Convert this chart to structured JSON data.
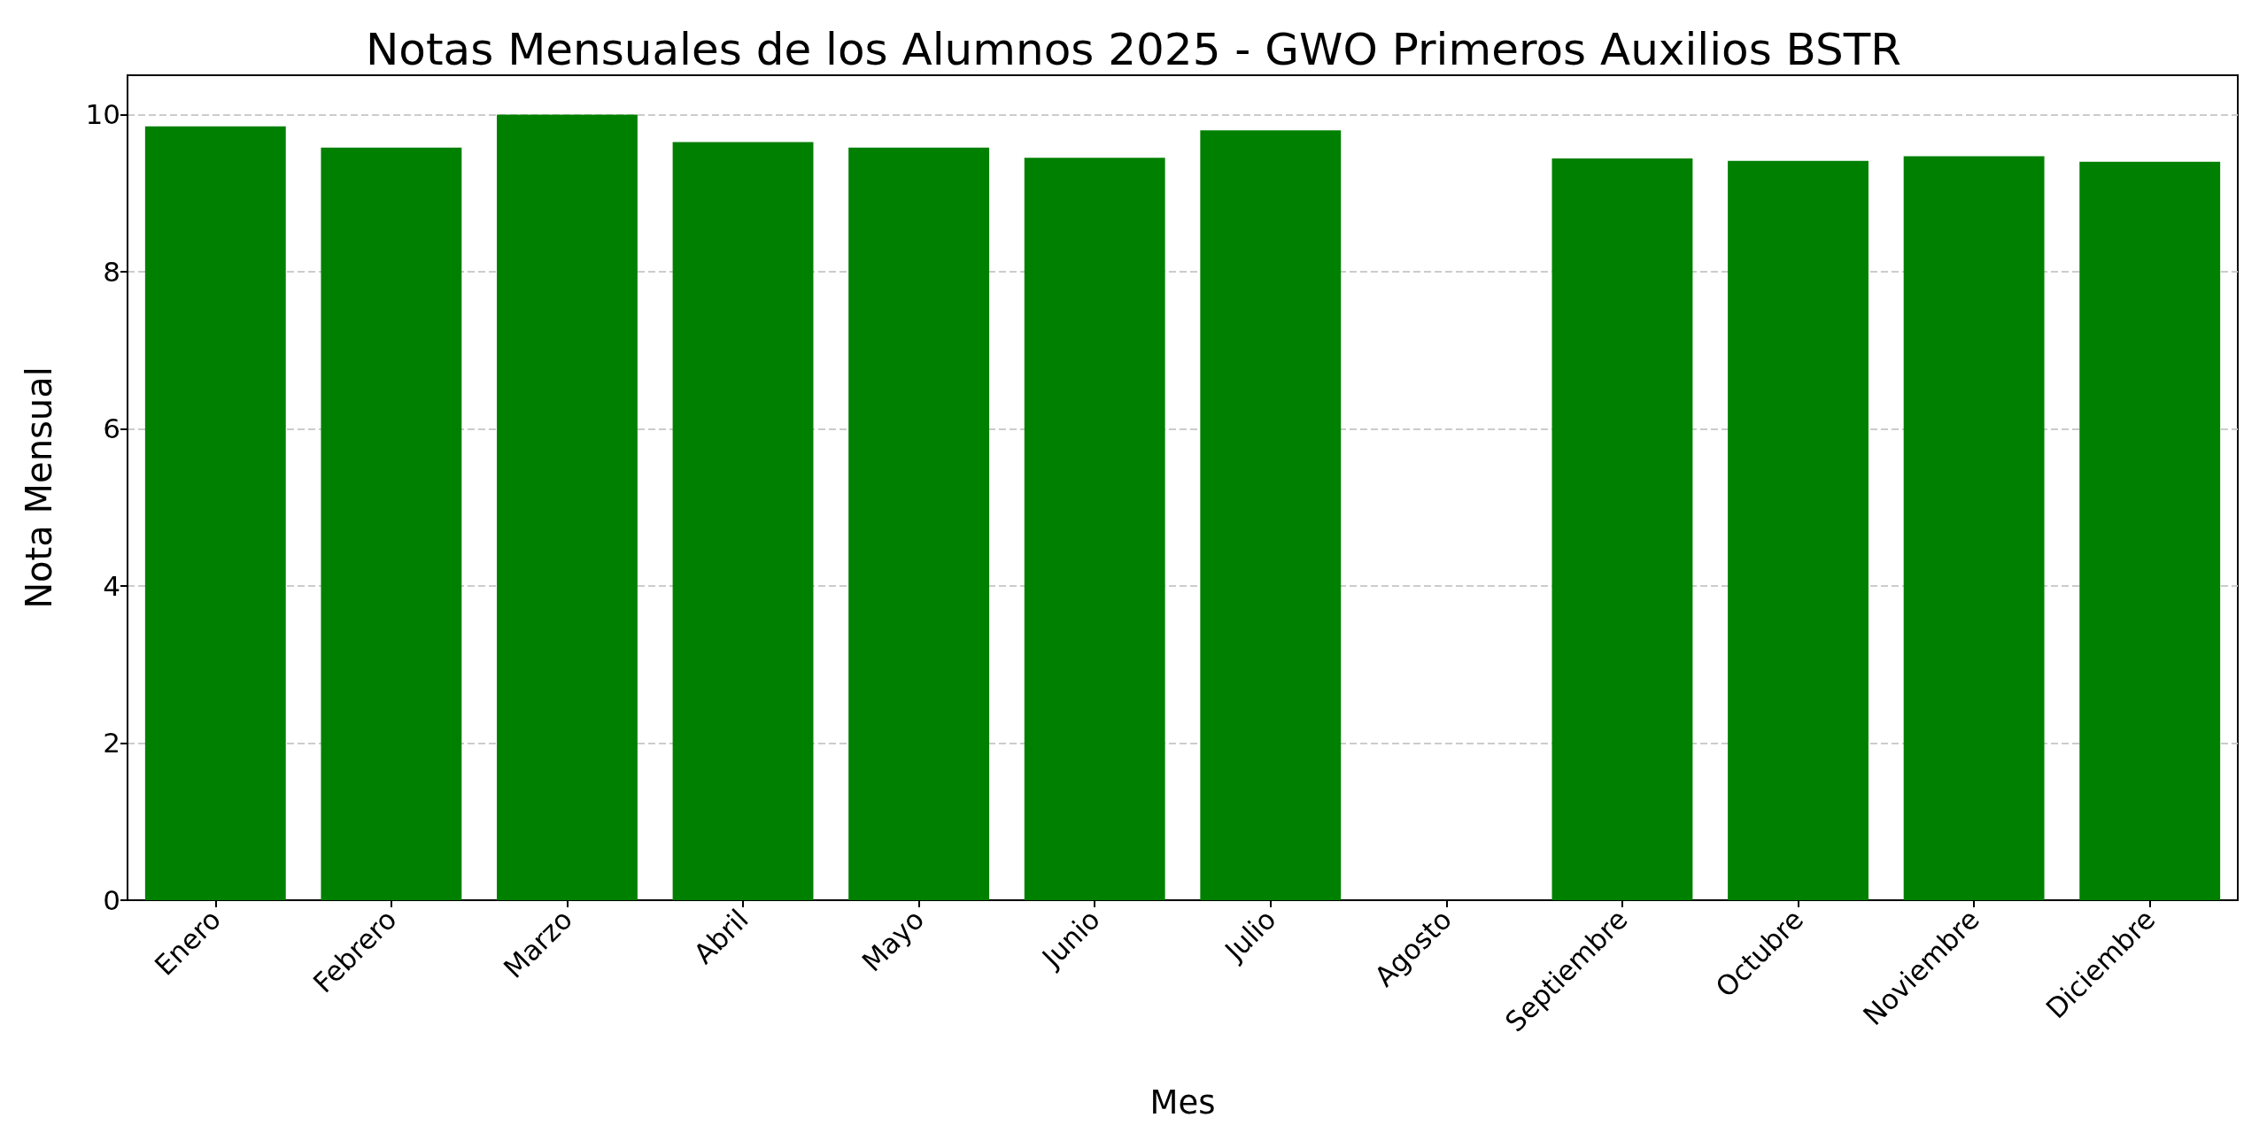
{
  "chart_data": {
    "type": "bar",
    "title": "Notas Mensuales de los Alumnos 2025 - GWO Primeros Auxilios BSTR",
    "xlabel": "Mes",
    "ylabel": "Nota Mensual",
    "categories": [
      "Enero",
      "Febrero",
      "Marzo",
      "Abril",
      "Mayo",
      "Junio",
      "Julio",
      "Agosto",
      "Septiembre",
      "Octubre",
      "Noviembre",
      "Diciembre"
    ],
    "values": [
      9.85,
      9.58,
      10.0,
      9.65,
      9.58,
      9.45,
      9.8,
      null,
      9.44,
      9.41,
      9.47,
      9.4
    ],
    "color": "#008000",
    "ylim": [
      0,
      10.5
    ],
    "yticks": [
      0,
      2,
      4,
      6,
      8,
      10
    ],
    "grid": "y"
  }
}
